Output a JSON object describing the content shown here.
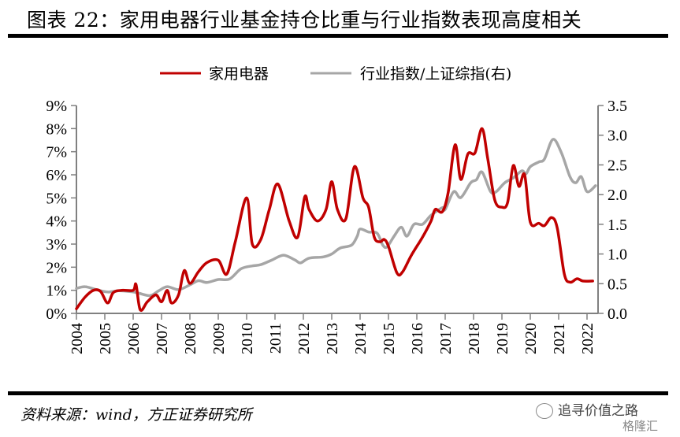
{
  "header": {
    "title": "图表 22：家用电器行业基金持仓比重与行业指数表现高度相关"
  },
  "footer": {
    "source": "资料来源：wind，方正证券研究所",
    "watermark": "追寻价值之路",
    "watermark2": "格隆汇"
  },
  "colors": {
    "series1": "#C00000",
    "series2": "#A6A6A6",
    "axis": "#808080"
  },
  "chart_data": {
    "type": "line",
    "title": "家用电器行业基金持仓比重与行业指数表现高度相关",
    "xlabel": "",
    "ylabel": "",
    "ylabel_right": "",
    "legend_position": "top",
    "grid": false,
    "x_ticks": [
      "2004",
      "2005",
      "2006",
      "2007",
      "2008",
      "2009",
      "2010",
      "2011",
      "2012",
      "2013",
      "2014",
      "2015",
      "2016",
      "2017",
      "2018",
      "2019",
      "2020",
      "2021",
      "2022"
    ],
    "x_range": [
      2004,
      2022.5
    ],
    "y_left": {
      "range": [
        0,
        9
      ],
      "ticks": [
        "0%",
        "1%",
        "2%",
        "3%",
        "4%",
        "5%",
        "6%",
        "7%",
        "8%",
        "9%"
      ]
    },
    "y_right": {
      "range": [
        0,
        3.5
      ],
      "ticks": [
        "0.0",
        "0.5",
        "1.0",
        "1.5",
        "2.0",
        "2.5",
        "3.0",
        "3.5"
      ]
    },
    "series": [
      {
        "name": "家用电器",
        "axis": "left",
        "unit": "%",
        "x": [
          2004.0,
          2004.3,
          2004.6,
          2004.85,
          2005.1,
          2005.3,
          2005.6,
          2006.0,
          2006.1,
          2006.25,
          2006.5,
          2006.8,
          2007.0,
          2007.2,
          2007.35,
          2007.6,
          2007.8,
          2008.0,
          2008.3,
          2008.6,
          2009.0,
          2009.3,
          2009.6,
          2010.0,
          2010.2,
          2010.5,
          2010.8,
          2011.1,
          2011.5,
          2011.8,
          2012.05,
          2012.2,
          2012.5,
          2012.8,
          2013.0,
          2013.2,
          2013.5,
          2013.8,
          2014.1,
          2014.3,
          2014.5,
          2014.7,
          2014.85,
          2015.0,
          2015.3,
          2015.5,
          2015.8,
          2016.2,
          2016.5,
          2016.65,
          2016.9,
          2017.1,
          2017.35,
          2017.55,
          2017.8,
          2018.05,
          2018.3,
          2018.5,
          2018.75,
          2019.0,
          2019.2,
          2019.4,
          2019.6,
          2019.8,
          2020.0,
          2020.3,
          2020.5,
          2020.75,
          2020.95,
          2021.2,
          2021.4,
          2021.65,
          2021.85,
          2022.2
        ],
        "values": [
          0.2,
          0.7,
          1.0,
          0.95,
          0.45,
          0.9,
          1.0,
          1.0,
          1.25,
          0.15,
          0.5,
          0.8,
          0.5,
          1.0,
          0.45,
          0.8,
          1.85,
          1.3,
          1.8,
          2.2,
          2.3,
          1.7,
          3.1,
          5.0,
          3.0,
          3.2,
          4.5,
          5.6,
          4.0,
          3.3,
          5.05,
          4.5,
          4.0,
          4.5,
          5.7,
          4.5,
          4.1,
          6.35,
          5.0,
          4.6,
          3.3,
          3.1,
          3.2,
          2.9,
          1.75,
          1.8,
          2.5,
          3.3,
          4.0,
          4.5,
          4.4,
          5.2,
          7.3,
          5.8,
          6.9,
          6.95,
          8.0,
          6.7,
          4.9,
          4.6,
          4.8,
          6.4,
          5.5,
          6.0,
          3.95,
          3.9,
          3.8,
          4.15,
          3.7,
          1.7,
          1.35,
          1.5,
          1.4,
          1.4
        ]
      },
      {
        "name": "行业指数/上证综指(右)",
        "axis": "right",
        "x": [
          2004.0,
          2004.3,
          2004.7,
          2005.1,
          2005.5,
          2006.0,
          2006.2,
          2006.6,
          2006.9,
          2007.2,
          2007.6,
          2008.0,
          2008.3,
          2008.6,
          2009.0,
          2009.4,
          2009.8,
          2010.2,
          2010.5,
          2010.9,
          2011.3,
          2011.7,
          2011.9,
          2012.2,
          2012.7,
          2013.0,
          2013.3,
          2013.7,
          2013.9,
          2014.0,
          2014.3,
          2014.6,
          2014.8,
          2014.95,
          2015.2,
          2015.45,
          2015.65,
          2015.9,
          2016.2,
          2016.5,
          2016.9,
          2017.0,
          2017.3,
          2017.55,
          2017.9,
          2018.1,
          2018.3,
          2018.6,
          2018.8,
          2019.1,
          2019.4,
          2019.7,
          2019.85,
          2020.0,
          2020.3,
          2020.5,
          2020.8,
          2021.1,
          2021.4,
          2021.6,
          2021.8,
          2022.0,
          2022.3
        ],
        "values": [
          0.42,
          0.45,
          0.4,
          0.36,
          0.38,
          0.36,
          0.34,
          0.3,
          0.38,
          0.45,
          0.4,
          0.48,
          0.55,
          0.52,
          0.57,
          0.58,
          0.75,
          0.8,
          0.82,
          0.9,
          0.98,
          0.9,
          0.85,
          0.93,
          0.95,
          1.0,
          1.1,
          1.15,
          1.3,
          1.42,
          1.37,
          1.35,
          1.15,
          1.12,
          1.3,
          1.45,
          1.3,
          1.5,
          1.5,
          1.65,
          1.78,
          1.75,
          2.05,
          1.95,
          2.2,
          2.25,
          2.38,
          2.05,
          2.05,
          2.2,
          2.28,
          2.4,
          2.35,
          2.47,
          2.55,
          2.6,
          2.93,
          2.7,
          2.3,
          2.2,
          2.3,
          2.05,
          2.15
        ]
      }
    ]
  }
}
